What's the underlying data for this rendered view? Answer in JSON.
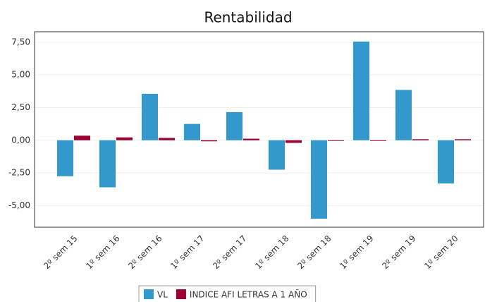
{
  "chart_data": {
    "type": "bar",
    "title": "Rentabilidad",
    "categories": [
      "2º sem 15",
      "1º sem 16",
      "2º sem 16",
      "1º sem 17",
      "2º sem 17",
      "1º sem 18",
      "2º sem 18",
      "1º sem 19",
      "2º sem 19",
      "1º sem 20"
    ],
    "series": [
      {
        "name": "VL",
        "color": "#3399cc",
        "values": [
          -2.75,
          -3.6,
          3.55,
          1.25,
          2.15,
          -2.25,
          -6.0,
          7.55,
          3.85,
          -3.3
        ]
      },
      {
        "name": "INDICE AFI LETRAS A 1 AÑO",
        "color": "#990033",
        "values": [
          0.35,
          0.22,
          0.18,
          -0.08,
          0.12,
          -0.2,
          -0.05,
          -0.02,
          0.08,
          0.08
        ]
      }
    ],
    "ylim": [
      -6.65,
      8.3
    ],
    "yticks": [
      {
        "value": -5,
        "label": "-5,00"
      },
      {
        "value": -2.5,
        "label": "-2,50"
      },
      {
        "value": 0,
        "label": "0,00"
      },
      {
        "value": 2.5,
        "label": "2,50"
      },
      {
        "value": 5,
        "label": "5,00"
      },
      {
        "value": 7.5,
        "label": "7,50"
      }
    ],
    "grid": true,
    "legend": "bottom"
  }
}
